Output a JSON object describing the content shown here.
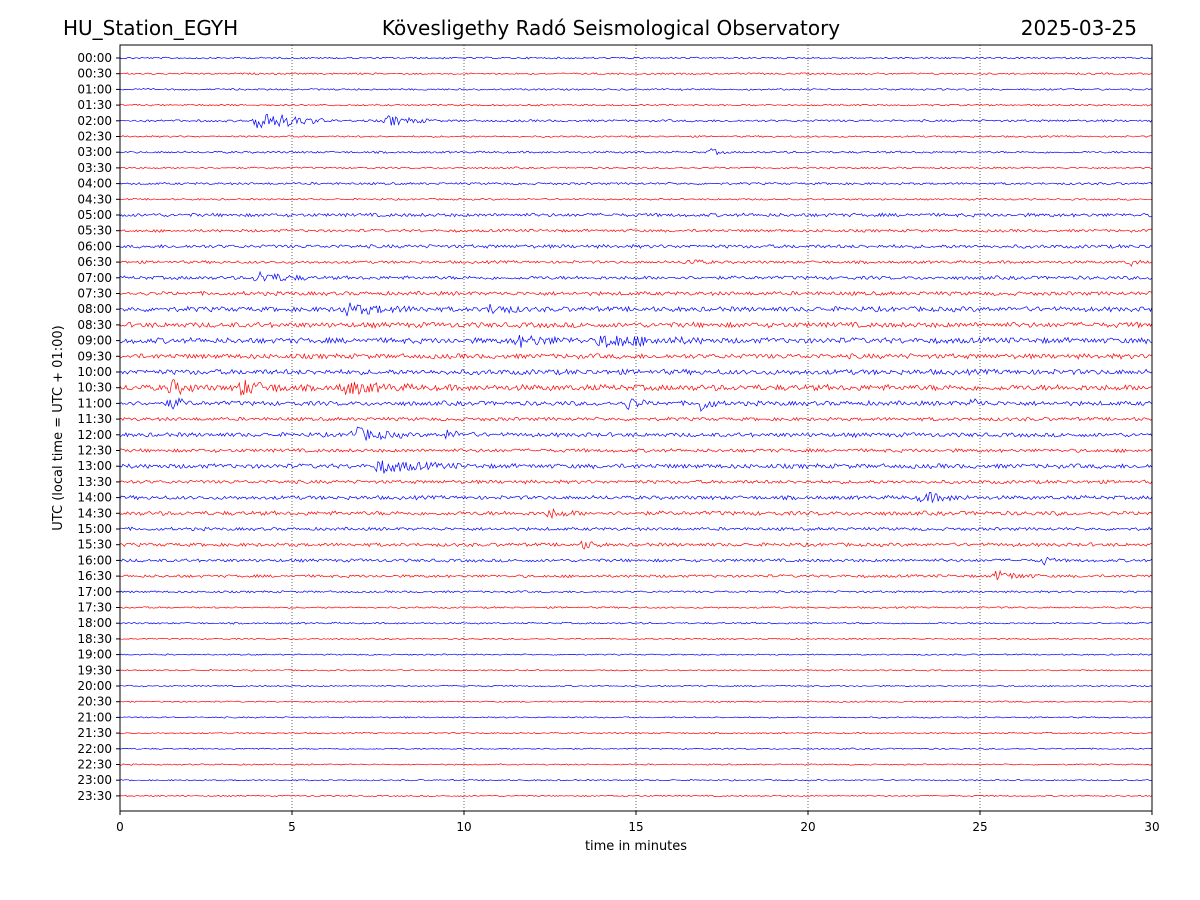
{
  "header": {
    "station": "HU_Station_EGYH",
    "observatory": "Kövesligethy Radó Seismological Observatory",
    "date": "2025-03-25"
  },
  "chart_data": {
    "type": "line",
    "title": "Kövesligethy Radó Seismological Observatory",
    "xlabel": "time in minutes",
    "ylabel": "UTC (local time = UTC + 01:00)",
    "xlim": [
      0,
      30
    ],
    "x_ticks": [
      "0",
      "5",
      "10",
      "15",
      "20",
      "25",
      "30"
    ],
    "x_tick_values": [
      0,
      5,
      10,
      15,
      20,
      25,
      30
    ],
    "grid": "vertical dotted at x ticks",
    "trace_colors": [
      "#0000ff",
      "#ff0000"
    ],
    "rows": [
      "00:00",
      "00:30",
      "01:00",
      "01:30",
      "02:00",
      "02:30",
      "03:00",
      "03:30",
      "04:00",
      "04:30",
      "05:00",
      "05:30",
      "06:00",
      "06:30",
      "07:00",
      "07:30",
      "08:00",
      "08:30",
      "09:00",
      "09:30",
      "10:00",
      "10:30",
      "11:00",
      "11:30",
      "12:00",
      "12:30",
      "13:00",
      "13:30",
      "14:00",
      "14:30",
      "15:00",
      "15:30",
      "16:00",
      "16:30",
      "17:00",
      "17:30",
      "18:00",
      "18:30",
      "19:00",
      "19:30",
      "20:00",
      "20:30",
      "21:00",
      "21:30",
      "22:00",
      "22:30",
      "23:00",
      "23:30"
    ],
    "noise_level": [
      1,
      1,
      1,
      1,
      1.3,
      1,
      1.2,
      1,
      1.3,
      1,
      2,
      1.6,
      2,
      1.6,
      2,
      2.2,
      2.8,
      3,
      3.2,
      2.8,
      3,
      3.4,
      2.6,
      2,
      2.4,
      2,
      2.6,
      2,
      2.2,
      2.4,
      1.8,
      2,
      1.8,
      1.6,
      1.2,
      1,
      1,
      0.8,
      0.8,
      0.8,
      0.8,
      0.8,
      0.8,
      0.8,
      0.8,
      0.8,
      0.8,
      0.8
    ],
    "events": [
      {
        "row": 4,
        "minute": 4.0,
        "amplitude": 12,
        "duration": 2.0
      },
      {
        "row": 4,
        "minute": 7.8,
        "amplitude": 5,
        "duration": 1.4
      },
      {
        "row": 6,
        "minute": 17.2,
        "amplitude": 3,
        "duration": 0.5
      },
      {
        "row": 13,
        "minute": 16.5,
        "amplitude": 3,
        "duration": 0.8
      },
      {
        "row": 13,
        "minute": 29.4,
        "amplitude": 4,
        "duration": 0.3
      },
      {
        "row": 14,
        "minute": 4.0,
        "amplitude": 6,
        "duration": 1.5
      },
      {
        "row": 16,
        "minute": 6.5,
        "amplitude": 5,
        "duration": 2.5
      },
      {
        "row": 16,
        "minute": 10.8,
        "amplitude": 5,
        "duration": 1.0
      },
      {
        "row": 18,
        "minute": 11.5,
        "amplitude": 5,
        "duration": 2.0
      },
      {
        "row": 18,
        "minute": 14.0,
        "amplitude": 6,
        "duration": 3.0
      },
      {
        "row": 21,
        "minute": 1.5,
        "amplitude": 7,
        "duration": 0.8
      },
      {
        "row": 21,
        "minute": 3.5,
        "amplitude": 7,
        "duration": 1.5
      },
      {
        "row": 21,
        "minute": 6.5,
        "amplitude": 6,
        "duration": 2.0
      },
      {
        "row": 22,
        "minute": 1.5,
        "amplitude": 6,
        "duration": 0.6
      },
      {
        "row": 22,
        "minute": 14.8,
        "amplitude": 6,
        "duration": 0.6
      },
      {
        "row": 22,
        "minute": 16.9,
        "amplitude": 8,
        "duration": 0.5
      },
      {
        "row": 22,
        "minute": 24.8,
        "amplitude": 5,
        "duration": 0.4
      },
      {
        "row": 24,
        "minute": 6.8,
        "amplitude": 7,
        "duration": 1.6
      },
      {
        "row": 24,
        "minute": 9.5,
        "amplitude": 4,
        "duration": 0.8
      },
      {
        "row": 26,
        "minute": 7.5,
        "amplitude": 6,
        "duration": 2.4
      },
      {
        "row": 28,
        "minute": 23.3,
        "amplitude": 5,
        "duration": 1.5
      },
      {
        "row": 29,
        "minute": 12.5,
        "amplitude": 4,
        "duration": 1.0
      },
      {
        "row": 31,
        "minute": 13.5,
        "amplitude": 4,
        "duration": 0.6
      },
      {
        "row": 32,
        "minute": 26.8,
        "amplitude": 5,
        "duration": 0.4
      },
      {
        "row": 33,
        "minute": 25.5,
        "amplitude": 5,
        "duration": 1.2
      }
    ]
  }
}
